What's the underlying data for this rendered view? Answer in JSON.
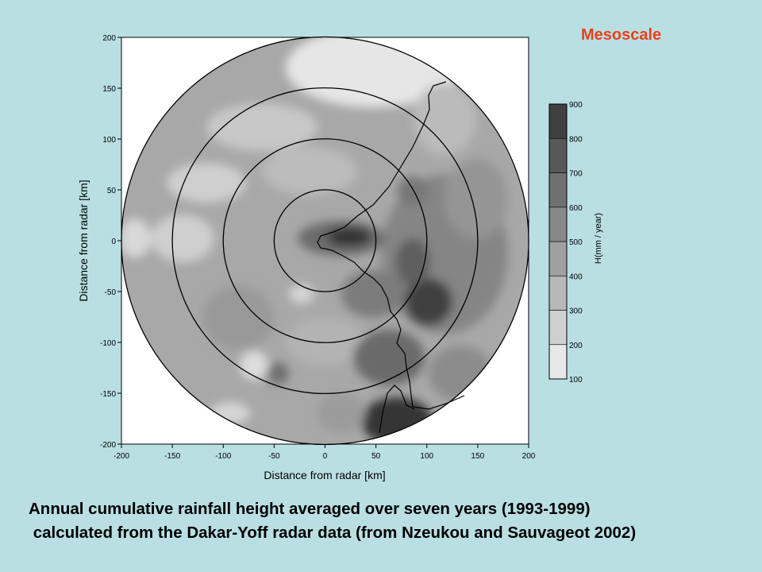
{
  "slide": {
    "label": "Mesoscale",
    "caption_line1": "Annual cumulative rainfall height averaged over seven years (1993-1999)",
    "caption_line2": " calculated from the Dakar-Yoff radar data (from Nzeukou and Sauvageot 2002)"
  },
  "chart_data": {
    "type": "heatmap",
    "title": "",
    "xlabel": "Distance from radar [km]",
    "ylabel": "Distance from radar [km]",
    "xlim": [
      -200,
      200
    ],
    "ylim": [
      -200,
      200
    ],
    "xticks": [
      -200,
      -150,
      -100,
      -50,
      0,
      50,
      100,
      150,
      200
    ],
    "yticks": [
      -200,
      -150,
      -100,
      -50,
      0,
      50,
      100,
      150,
      200
    ],
    "range_rings_km": [
      50,
      100,
      150,
      200
    ],
    "colorbar": {
      "label": "H(mm / year)",
      "ticks": [
        100,
        200,
        300,
        400,
        500,
        600,
        700,
        800,
        900
      ],
      "colors": [
        "#e8e8e8",
        "#d0d0d0",
        "#b8b8b8",
        "#a0a0a0",
        "#888888",
        "#707070",
        "#585858",
        "#404040"
      ]
    },
    "features": [
      {
        "name": "maximum near radar",
        "x": 25,
        "y": 0,
        "value": 850
      },
      {
        "name": "southeast maximum",
        "x": 90,
        "y": -60,
        "value": 800
      },
      {
        "name": "south maximum",
        "x": 75,
        "y": -170,
        "value": 750
      },
      {
        "name": "north-west minimum",
        "x": 70,
        "y": 180,
        "value": 150
      }
    ]
  }
}
